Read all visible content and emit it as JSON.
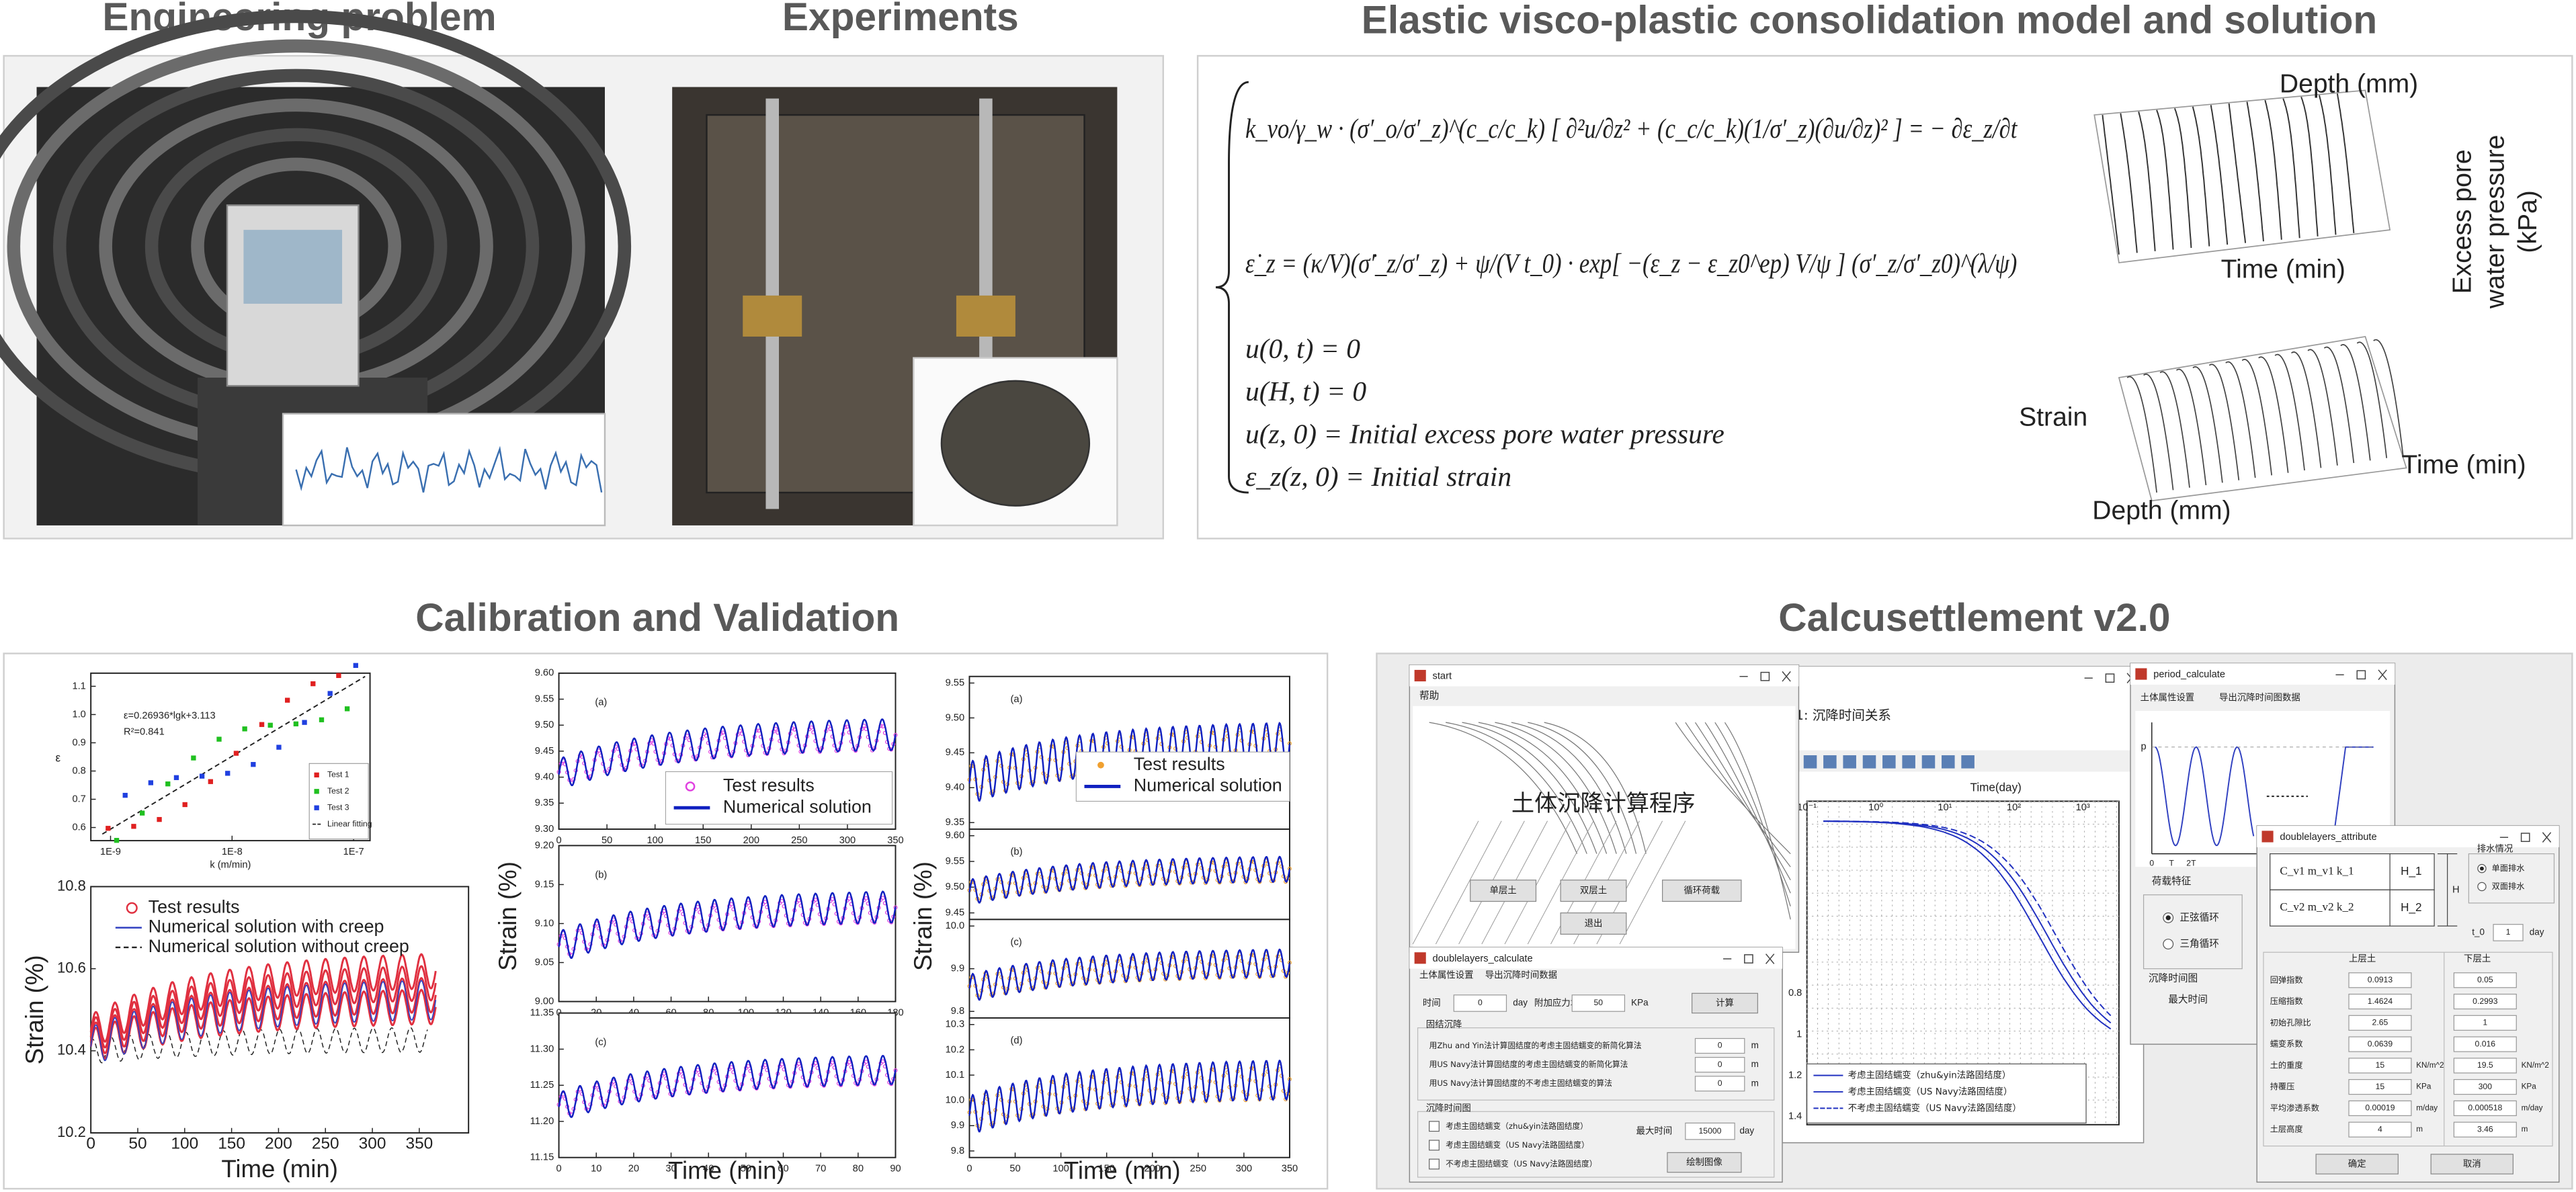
{
  "sections": {
    "engineering": "Engineering problem",
    "experiments": "Experiments",
    "model": "Elastic visco-plastic consolidation model and solution",
    "calibration": "Calibration and Validation",
    "software": "Calcusettlement v2.0"
  },
  "model": {
    "equations": [
      "k_vo/γ_w · (σ′_o/σ′_z)^(c_c/c_k) [ ∂²u/∂z² + (c_c/c_k)(1/σ′_z)(∂u/∂z)² ] = − ∂ε_z/∂t",
      "ε̇_z = (κ/V)(σ̇′_z/σ′_z) + ψ/(V t_0) · exp[ −(ε_z − ε_z0^ep) V/ψ ] (σ′_z/σ′_z0)^(λ/ψ)",
      "u(0, t) = 0",
      "u(H, t) = 0",
      "u(z, 0) = Initial excess pore water pressure",
      "ε_z(z, 0) = Initial strain"
    ],
    "pore_plot": {
      "depth": "Depth (mm)",
      "time": "Time (min)",
      "value": [
        "Excess pore",
        "water pressure",
        "(kPa)"
      ]
    },
    "strain_plot": {
      "value": "Strain",
      "time": "Time (min)",
      "depth": "Depth (mm)"
    }
  },
  "calibration": {
    "fit": {
      "equation": "ε=0.26936*lgk+3.113",
      "r2": "R²=0.841",
      "ylabel": "ε",
      "xlabel": "k (m/min)",
      "xticks": [
        "1E-9",
        "1E-8",
        "1E-7"
      ],
      "yticks": [
        "0.6",
        "0.7",
        "0.8",
        "0.9",
        "1.0",
        "1.1"
      ],
      "legend": [
        "Test 1",
        "Test 2",
        "Test 3",
        "Linear fitting"
      ]
    },
    "creep": {
      "ylabel": "Strain (%)",
      "xlabel": "Time (min)",
      "xticks": [
        "0",
        "50",
        "100",
        "150",
        "200",
        "250",
        "300",
        "350"
      ],
      "yticks": [
        "10.2",
        "10.4",
        "10.6",
        "10.8"
      ],
      "legend": [
        "Test results",
        "Numerical solution with creep",
        "Numerical solution without creep"
      ]
    },
    "short": {
      "ylabel": "Strain (%)",
      "xlabel": "Time (min)",
      "legend": [
        "Test results",
        "Numerical solution"
      ],
      "panels": [
        {
          "tag": "(a)",
          "xticks": [
            "0",
            "50",
            "100",
            "150",
            "200",
            "250",
            "300",
            "350"
          ],
          "yticks": [
            "9.30",
            "9.35",
            "9.40",
            "9.45",
            "9.50",
            "9.55",
            "9.60"
          ]
        },
        {
          "tag": "(b)",
          "xticks": [
            "0",
            "20",
            "40",
            "60",
            "80",
            "100",
            "120",
            "140",
            "160",
            "180"
          ],
          "yticks": [
            "9.00",
            "9.05",
            "9.10",
            "9.15",
            "9.20"
          ]
        },
        {
          "tag": "(c)",
          "xticks": [
            "0",
            "10",
            "20",
            "30",
            "40",
            "50",
            "60",
            "70",
            "80",
            "90"
          ],
          "yticks": [
            "11.15",
            "11.20",
            "11.25",
            "11.30",
            "11.35"
          ]
        }
      ]
    },
    "long": {
      "ylabel": "Strain (%)",
      "xlabel": "Time (min)",
      "legend": [
        "Test results",
        "Numerical solution"
      ],
      "xticks": [
        "0",
        "50",
        "100",
        "150",
        "200",
        "250",
        "300",
        "350"
      ],
      "panels": [
        {
          "tag": "(a)",
          "yticks": [
            "9.35",
            "9.40",
            "9.45",
            "9.50",
            "9.55"
          ]
        },
        {
          "tag": "(b)",
          "yticks": [
            "9.45",
            "9.50",
            "9.55",
            "9.60"
          ]
        },
        {
          "tag": "(c)",
          "yticks": [
            "9.8",
            "9.9",
            "10.0"
          ]
        },
        {
          "tag": "(d)",
          "yticks": [
            "9.8",
            "9.9",
            "10.0",
            "10.1",
            "10.2",
            "10.3"
          ]
        }
      ]
    }
  },
  "software": {
    "start": {
      "title": "start",
      "menu": "帮助",
      "heading": "土体沉降计算程序",
      "buttons": [
        "单层土",
        "双层土",
        "循环荷载",
        "退出"
      ]
    },
    "plot": {
      "title": "1: 沉降时间关系",
      "xlabel": "Time(day)",
      "xticks": [
        "10⁻¹",
        "10⁰",
        "10¹",
        "10²",
        "10³"
      ],
      "yticks": [
        "0.8",
        "1",
        "1.2",
        "1.4"
      ],
      "legend": [
        "考虑主固结蠕变（zhu&yin法路固结度）",
        "考虑主固结蠕变（US Navy法路固结度）",
        "不考虑主固结蠕变（US Navy法路固结度）"
      ]
    },
    "calc": {
      "title": "doublelayers_calculate",
      "menu": [
        "土体属性设置",
        "导出沉降时间数据"
      ],
      "time_label": "时间",
      "time_value": "0",
      "time_unit": "day",
      "stress_label": "附加应力增量",
      "stress_value": "50",
      "stress_unit": "KPa",
      "compute": "计算",
      "group1": "固结沉降",
      "rows": [
        {
          "label": "用Zhu and Yin法计算固结度的考虑主固结蠕变的新简化算法",
          "value": "0",
          "unit": "m"
        },
        {
          "label": "用US Navy法计算固结度的考虑主固结蠕变的新简化算法",
          "value": "0",
          "unit": "m"
        },
        {
          "label": "用US Navy法计算固结度的不考虑主固结蠕变的算法",
          "value": "0",
          "unit": "m"
        }
      ],
      "group2": "沉降时间图",
      "checks": [
        "考虑主固结蠕变（zhu&yin法路固结度）",
        "考虑主固结蠕变（US Navy法路固结度）",
        "不考虑主固结蠕变（US Navy法路固结度）"
      ],
      "max_label": "最大时间",
      "max_value": "15000",
      "max_unit": "day",
      "draw": "绘制图像"
    },
    "period": {
      "title": "period_calculate",
      "menu": [
        "土体属性设置",
        "导出沉降时间图数据"
      ],
      "axis": "p",
      "ticks": [
        "0",
        "T",
        "2T"
      ],
      "group": "荷载特征",
      "radios": [
        "正弦循环",
        "三角循环"
      ],
      "group2": "沉降时间图",
      "max_label": "最大时间"
    },
    "attr": {
      "title": "doublelayers_attribute",
      "layer1": "C_v1  m_v1  k_1",
      "h1": "H_1",
      "layer2": "C_v2  m_v2  k_2",
      "h2": "H_2",
      "h": "H",
      "drain": "排水情况",
      "radios": [
        "单面排水",
        "双面排水"
      ],
      "t0": "t_0",
      "t0_value": "1",
      "t0_unit": "day",
      "cols": [
        "上层土",
        "下层土"
      ],
      "rows": [
        {
          "label": "回弹指数",
          "upper": "0.0913",
          "lower": "0.05"
        },
        {
          "label": "压缩指数",
          "upper": "1.4624",
          "lower": "0.2993"
        },
        {
          "label": "初始孔隙比",
          "upper": "2.65",
          "lower": "1"
        },
        {
          "label": "蠕变系数",
          "upper": "0.0639",
          "lower": "0.016"
        },
        {
          "label": "土的重度",
          "upper": "15",
          "upper_unit": "KN/m^2",
          "lower": "19.5",
          "lower_unit": "KN/m^2"
        },
        {
          "label": "持覆压",
          "upper": "15",
          "upper_unit": "KPa",
          "lower": "300",
          "lower_unit": "KPa"
        },
        {
          "label": "平均渗透系数",
          "upper": "0.00019",
          "upper_unit": "m/day",
          "lower": "0.000518",
          "lower_unit": "m/day"
        },
        {
          "label": "土层高度",
          "upper": "4",
          "upper_unit": "m",
          "lower": "3.46",
          "lower_unit": "m"
        }
      ],
      "ok": "确定",
      "cancel": "取消"
    }
  }
}
